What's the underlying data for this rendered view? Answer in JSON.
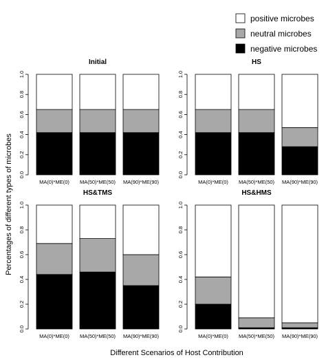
{
  "ylabel": "Percentages of different types of microbes",
  "xlabel": "Different Scenarios of Host Contribution",
  "legend": [
    {
      "label": "positive microbes",
      "color": "#ffffff"
    },
    {
      "label": "neutral microbes",
      "color": "#a8a8a8"
    },
    {
      "label": "negative microbes",
      "color": "#000000"
    }
  ],
  "chart_data": [
    {
      "type": "bar",
      "stacked": true,
      "title": "Initial",
      "categories": [
        "MA(0)*ME(0)",
        "MA(50)*ME(50)",
        "MA(90)*ME(90)"
      ],
      "ylim": [
        0,
        1
      ],
      "yticks": [
        "0.0",
        "0.2",
        "0.4",
        "0.6",
        "0.8",
        "1.0"
      ],
      "series": [
        {
          "name": "negative microbes",
          "values": [
            0.42,
            0.42,
            0.42
          ]
        },
        {
          "name": "neutral microbes",
          "values": [
            0.23,
            0.23,
            0.23
          ]
        },
        {
          "name": "positive microbes",
          "values": [
            0.35,
            0.35,
            0.35
          ]
        }
      ]
    },
    {
      "type": "bar",
      "stacked": true,
      "title": "HS",
      "categories": [
        "MA(0)*ME(0)",
        "MA(50)*ME(50)",
        "MA(90)*ME(90)"
      ],
      "ylim": [
        0,
        1
      ],
      "yticks": [
        "0.0",
        "0.2",
        "0.4",
        "0.6",
        "0.8",
        "1.0"
      ],
      "series": [
        {
          "name": "negative microbes",
          "values": [
            0.42,
            0.42,
            0.28
          ]
        },
        {
          "name": "neutral microbes",
          "values": [
            0.23,
            0.23,
            0.19
          ]
        },
        {
          "name": "positive microbes",
          "values": [
            0.35,
            0.35,
            0.53
          ]
        }
      ]
    },
    {
      "type": "bar",
      "stacked": true,
      "title": "HS&TMS",
      "categories": [
        "MA(0)*ME(0)",
        "MA(50)*ME(50)",
        "MA(90)*ME(90)"
      ],
      "ylim": [
        0,
        1
      ],
      "yticks": [
        "0.0",
        "0.2",
        "0.4",
        "0.6",
        "0.8",
        "1.0"
      ],
      "series": [
        {
          "name": "negative microbes",
          "values": [
            0.44,
            0.46,
            0.35
          ]
        },
        {
          "name": "neutral microbes",
          "values": [
            0.25,
            0.27,
            0.25
          ]
        },
        {
          "name": "positive microbes",
          "values": [
            0.31,
            0.27,
            0.4
          ]
        }
      ]
    },
    {
      "type": "bar",
      "stacked": true,
      "title": "HS&HMS",
      "categories": [
        "MA(0)*ME(0)",
        "MA(50)*ME(50)",
        "MA(90)*ME(90)"
      ],
      "ylim": [
        0,
        1
      ],
      "yticks": [
        "0.0",
        "0.2",
        "0.4",
        "0.6",
        "0.8",
        "1.0"
      ],
      "series": [
        {
          "name": "negative microbes",
          "values": [
            0.2,
            0.01,
            0.01
          ]
        },
        {
          "name": "neutral microbes",
          "values": [
            0.22,
            0.08,
            0.04
          ]
        },
        {
          "name": "positive microbes",
          "values": [
            0.58,
            0.91,
            0.95
          ]
        }
      ]
    }
  ]
}
